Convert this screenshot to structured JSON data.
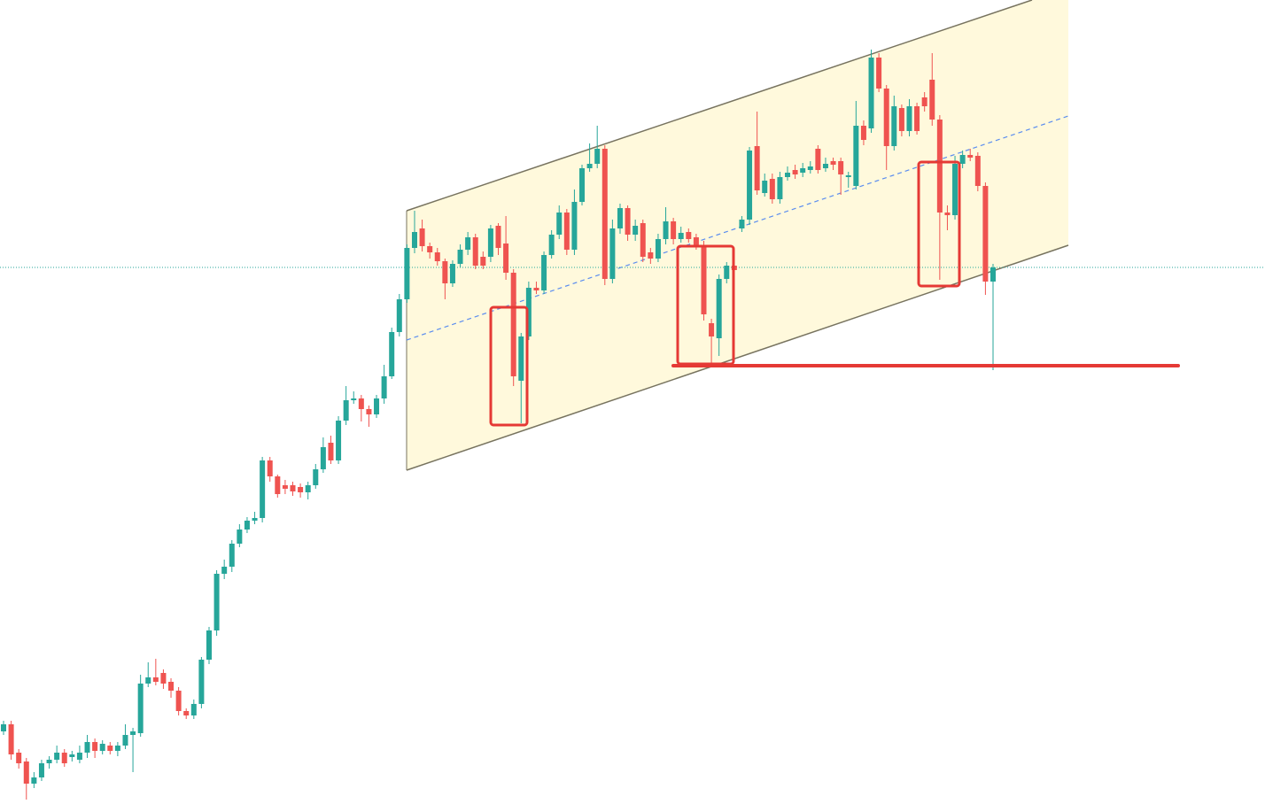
{
  "chart_data": {
    "type": "candlestick",
    "ylim": [
      0,
      908
    ],
    "up_color": "#26a69a",
    "down_color": "#ef5350",
    "open": [
      82,
      90,
      58,
      48,
      23,
      30,
      46,
      50,
      58,
      53,
      50,
      58,
      70,
      60,
      66,
      60,
      66,
      78,
      80,
      136,
      143,
      148,
      138,
      128,
      105,
      100,
      113,
      163,
      196,
      260,
      268,
      294,
      310,
      320,
      323,
      388,
      370,
      360,
      360,
      358,
      352,
      360,
      378,
      408,
      388,
      433,
      456,
      458,
      446,
      440,
      458,
      483,
      533,
      570,
      628,
      650,
      630,
      623,
      613,
      588,
      610,
      626,
      640,
      618,
      618,
      653,
      633,
      600,
      478,
      528,
      583,
      580,
      620,
      643,
      668,
      626,
      680,
      718,
      723,
      740,
      593,
      650,
      673,
      643,
      656,
      623,
      616,
      638,
      658,
      638,
      646,
      640,
      630,
      543,
      526,
      593,
      608,
      650,
      660,
      743,
      690,
      706,
      683,
      708,
      716,
      713,
      716,
      740,
      718,
      726,
      726,
      708,
      698,
      766,
      763,
      843,
      808,
      743,
      786,
      760,
      788,
      798,
      818,
      773,
      668,
      665,
      723,
      733,
      732,
      698,
      590
    ],
    "high": [
      94,
      94,
      62,
      52,
      36,
      50,
      54,
      66,
      62,
      60,
      66,
      78,
      74,
      72,
      70,
      70,
      90,
      86,
      146,
      160,
      164,
      152,
      142,
      132,
      108,
      118,
      166,
      200,
      264,
      276,
      298,
      316,
      324,
      330,
      392,
      392,
      372,
      366,
      364,
      362,
      364,
      384,
      414,
      416,
      438,
      472,
      466,
      462,
      450,
      462,
      496,
      538,
      576,
      632,
      670,
      660,
      634,
      628,
      616,
      614,
      632,
      646,
      644,
      624,
      654,
      656,
      664,
      604,
      532,
      590,
      590,
      624,
      648,
      676,
      672,
      694,
      722,
      746,
      766,
      744,
      660,
      678,
      676,
      660,
      660,
      628,
      644,
      674,
      662,
      652,
      650,
      644,
      636,
      548,
      598,
      612,
      616,
      664,
      742,
      782,
      712,
      712,
      714,
      720,
      722,
      724,
      726,
      744,
      730,
      730,
      730,
      714,
      794,
      772,
      852,
      848,
      812,
      800,
      790,
      796,
      792,
      804,
      848,
      778,
      676,
      732,
      738,
      740,
      736,
      702,
      610
    ],
    "low": [
      78,
      50,
      40,
      5,
      18,
      26,
      40,
      46,
      42,
      48,
      46,
      52,
      52,
      56,
      56,
      54,
      62,
      36,
      76,
      132,
      134,
      130,
      120,
      100,
      96,
      96,
      108,
      158,
      190,
      254,
      262,
      290,
      306,
      316,
      318,
      364,
      346,
      350,
      348,
      346,
      344,
      356,
      374,
      384,
      384,
      428,
      452,
      432,
      426,
      436,
      452,
      480,
      528,
      566,
      622,
      624,
      616,
      608,
      570,
      584,
      606,
      620,
      604,
      604,
      612,
      620,
      592,
      472,
      430,
      524,
      576,
      576,
      616,
      638,
      620,
      620,
      676,
      714,
      718,
      586,
      588,
      644,
      636,
      636,
      612,
      610,
      612,
      632,
      632,
      634,
      634,
      626,
      546,
      498,
      506,
      588,
      598,
      646,
      654,
      688,
      686,
      678,
      678,
      704,
      706,
      708,
      712,
      712,
      714,
      716,
      688,
      696,
      694,
      744,
      758,
      804,
      716,
      738,
      754,
      754,
      756,
      782,
      766,
      592,
      648,
      660,
      718,
      726,
      692,
      575,
      490
    ],
    "close": [
      90,
      56,
      46,
      23,
      30,
      46,
      50,
      58,
      46,
      56,
      58,
      70,
      60,
      68,
      60,
      66,
      78,
      82,
      136,
      143,
      138,
      136,
      128,
      105,
      100,
      113,
      163,
      196,
      260,
      268,
      294,
      310,
      320,
      323,
      388,
      370,
      350,
      356,
      353,
      352,
      360,
      378,
      403,
      388,
      433,
      456,
      458,
      446,
      440,
      458,
      483,
      533,
      570,
      628,
      646,
      630,
      623,
      613,
      588,
      610,
      626,
      640,
      608,
      608,
      650,
      628,
      600,
      483,
      528,
      583,
      580,
      620,
      643,
      668,
      626,
      680,
      718,
      723,
      740,
      593,
      650,
      673,
      643,
      653,
      618,
      616,
      638,
      658,
      638,
      645,
      638,
      630,
      553,
      528,
      593,
      608,
      603,
      660,
      738,
      693,
      704,
      683,
      708,
      713,
      711,
      718,
      720,
      716,
      723,
      722,
      711,
      710,
      766,
      750,
      843,
      808,
      743,
      788,
      760,
      788,
      760,
      788,
      773,
      668,
      665,
      723,
      733,
      730,
      698,
      590,
      606
    ]
  }
}
